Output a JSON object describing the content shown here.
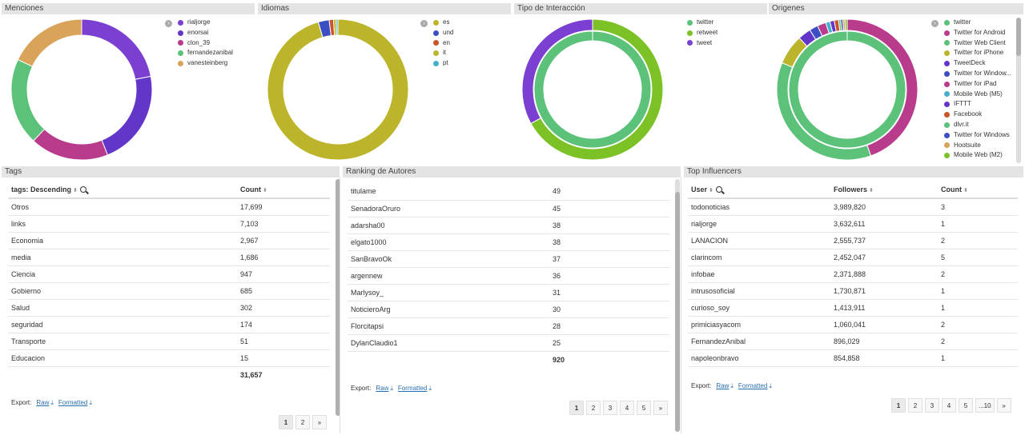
{
  "panels": {
    "menciones": "Menciones",
    "idiomas": "Idiomas",
    "tipo": "Tipo de Interacción",
    "origenes": "Origenes",
    "tags": "Tags",
    "ranking": "Ranking de Autores",
    "influencers": "Top Influencers"
  },
  "colors": {
    "purple": "#7b3fd1",
    "indigo": "#6236c9",
    "magenta": "#b83b8c",
    "green": "#5cc27a",
    "orange": "#d9a35a",
    "olive": "#bcb52c",
    "blue": "#3b4fc2",
    "red": "#c9552b",
    "cyan": "#46aec8",
    "lime": "#7cc226"
  },
  "menciones": {
    "legend": [
      "rialjorge",
      "enorsai",
      "clon_39",
      "fernandezanibal",
      "vanesteinberg"
    ],
    "chart_data": {
      "type": "pie",
      "categories": [
        "rialjorge",
        "enorsai",
        "clon_39",
        "fernandezanibal",
        "vanesteinberg"
      ],
      "values": [
        22,
        22,
        18,
        20,
        18
      ]
    }
  },
  "idiomas": {
    "legend": [
      "es",
      "und",
      "en",
      "it",
      "pt"
    ],
    "chart_data": {
      "type": "pie",
      "categories": [
        "es",
        "und",
        "en",
        "it",
        "pt"
      ],
      "values": [
        95.5,
        2.5,
        1,
        0.6,
        0.4
      ]
    }
  },
  "tipo": {
    "legend": [
      "twitter",
      "retweet",
      "tweet"
    ],
    "chart_data": {
      "type": "pie",
      "categories": [
        "twitter",
        "retweet",
        "tweet"
      ],
      "values": [
        100,
        67,
        33
      ]
    }
  },
  "origenes": {
    "legend": [
      "twitter",
      "Twitter for Android",
      "Twitter Web Client",
      "Twitter for iPhone",
      "TweetDeck",
      "Twitter for Window...",
      "Twitter for iPad",
      "Mobile Web (M5)",
      "IFTTT",
      "Facebook",
      "dlvr.it",
      "Twitter for Windows",
      "Hootsuite",
      "Mobile Web (M2)"
    ],
    "chart_data": {
      "type": "pie",
      "categories": [
        "twitter",
        "Twitter for Android",
        "Twitter Web Client",
        "Twitter for iPhone",
        "TweetDeck",
        "Twitter for Window...",
        "Twitter for iPad",
        "Mobile Web (M5)",
        "IFTTT",
        "Facebook",
        "dlvr.it",
        "Twitter for Windows",
        "Hootsuite",
        "Mobile Web (M2)"
      ],
      "values": [
        100,
        45,
        37,
        7,
        3,
        2,
        2,
        1,
        1,
        1,
        0.5,
        0.5,
        0.5,
        0.5
      ]
    }
  },
  "tags": {
    "col1": "tags: Descending",
    "col2": "Count",
    "rows": [
      [
        "Otros",
        "17,699"
      ],
      [
        "links",
        "7,103"
      ],
      [
        "Economia",
        "2,967"
      ],
      [
        "media",
        "1,686"
      ],
      [
        "Ciencia",
        "947"
      ],
      [
        "Gobierno",
        "685"
      ],
      [
        "Salud",
        "302"
      ],
      [
        "seguridad",
        "174"
      ],
      [
        "Transporte",
        "51"
      ],
      [
        "Educacion",
        "15"
      ]
    ],
    "total": "31,657",
    "pages": [
      "1",
      "2",
      "»"
    ]
  },
  "ranking": {
    "rows": [
      [
        "titulame",
        "49"
      ],
      [
        "SenadoraOruro",
        "45"
      ],
      [
        "adarsha00",
        "38"
      ],
      [
        "elgato1000",
        "38"
      ],
      [
        "SanBravoOk",
        "37"
      ],
      [
        "argennew",
        "36"
      ],
      [
        "Marlysoy_",
        "31"
      ],
      [
        "NoticieroArg",
        "30"
      ],
      [
        "Florcitapsi",
        "28"
      ],
      [
        "DylanClaudio1",
        "25"
      ]
    ],
    "total": "920",
    "pages": [
      "1",
      "2",
      "3",
      "4",
      "5",
      "»"
    ]
  },
  "influencers": {
    "col1": "User",
    "col2": "Followers",
    "col3": "Count",
    "rows": [
      [
        "todonoticias",
        "3,989,820",
        "3"
      ],
      [
        "rialjorge",
        "3,632,611",
        "1"
      ],
      [
        "LANACION",
        "2,555,737",
        "2"
      ],
      [
        "clarincom",
        "2,452,047",
        "5"
      ],
      [
        "infobae",
        "2,371,888",
        "2"
      ],
      [
        "intrusosoficial",
        "1,730,871",
        "1"
      ],
      [
        "curioso_soy",
        "1,413,911",
        "1"
      ],
      [
        "primiciasyacom",
        "1,060,041",
        "2"
      ],
      [
        "FernandezAnibal",
        "896,029",
        "2"
      ],
      [
        "napoleonbravo",
        "854,858",
        "1"
      ]
    ],
    "pages": [
      "1",
      "2",
      "3",
      "4",
      "5",
      "...10",
      "»"
    ]
  },
  "export": {
    "label": "Export:",
    "raw": "Raw",
    "formatted": "Formatted"
  }
}
